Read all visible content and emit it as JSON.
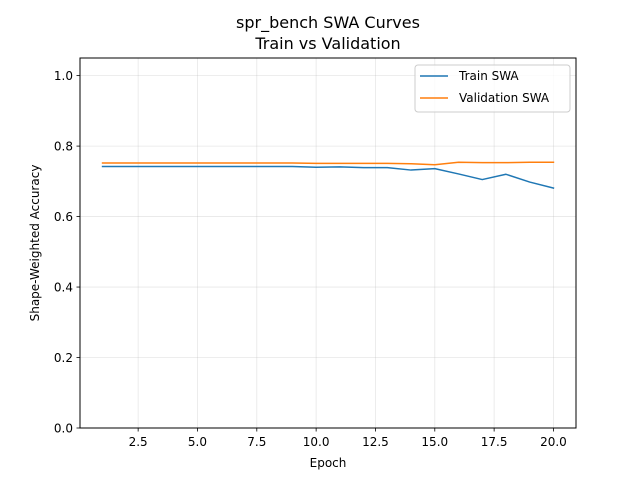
{
  "chart_data": {
    "type": "line",
    "title": "spr_bench SWA Curves",
    "subtitle": "Train vs Validation",
    "xlabel": "Epoch",
    "ylabel": "Shape-Weighted Accuracy",
    "xlim": [
      0.05,
      20.95
    ],
    "ylim": [
      0.0,
      1.05
    ],
    "xticks": [
      2.5,
      5.0,
      7.5,
      10.0,
      12.5,
      15.0,
      17.5,
      20.0
    ],
    "xtick_labels": [
      "2.5",
      "5.0",
      "7.5",
      "10.0",
      "12.5",
      "15.0",
      "17.5",
      "20.0"
    ],
    "yticks": [
      0.0,
      0.2,
      0.4,
      0.6,
      0.8,
      1.0
    ],
    "ytick_labels": [
      "0.0",
      "0.2",
      "0.4",
      "0.6",
      "0.8",
      "1.0"
    ],
    "grid": true,
    "legend_position": "top-right",
    "x": [
      1,
      2,
      3,
      4,
      5,
      6,
      7,
      8,
      9,
      10,
      11,
      12,
      13,
      14,
      15,
      16,
      17,
      18,
      19,
      20
    ],
    "series": [
      {
        "name": "Train SWA",
        "color": "#1f77b4",
        "values": [
          0.742,
          0.742,
          0.742,
          0.742,
          0.742,
          0.742,
          0.742,
          0.742,
          0.742,
          0.74,
          0.741,
          0.739,
          0.739,
          0.732,
          0.736,
          0.721,
          0.705,
          0.72,
          0.698,
          0.681
        ]
      },
      {
        "name": "Validation SWA",
        "color": "#ff7f0e",
        "values": [
          0.752,
          0.752,
          0.752,
          0.752,
          0.752,
          0.752,
          0.752,
          0.752,
          0.752,
          0.751,
          0.751,
          0.751,
          0.751,
          0.75,
          0.747,
          0.754,
          0.753,
          0.753,
          0.754,
          0.754
        ]
      }
    ]
  }
}
